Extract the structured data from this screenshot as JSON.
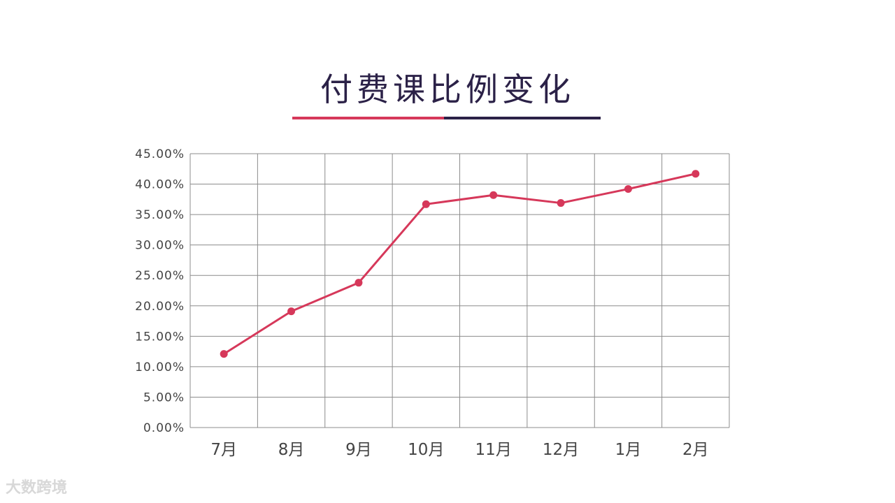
{
  "colors": {
    "line": "#d6385a",
    "title": "#2b2147",
    "grid": "#8c8c8c",
    "accent_left": "#d6385a",
    "accent_right": "#2b2147"
  },
  "chart_data": {
    "type": "line",
    "title": "付费课比例变化",
    "categories": [
      "7月",
      "8月",
      "9月",
      "10月",
      "11月",
      "12月",
      "1月",
      "2月"
    ],
    "series": [
      {
        "values": [
          12.1,
          19.1,
          23.8,
          36.7,
          38.2,
          36.9,
          39.2,
          41.7
        ]
      }
    ],
    "ylim": [
      0,
      45
    ],
    "yticks": [
      0,
      5,
      10,
      15,
      20,
      25,
      30,
      35,
      40,
      45
    ],
    "ytick_labels": [
      "0.00%",
      "5.00%",
      "10.00%",
      "15.00%",
      "20.00%",
      "25.00%",
      "30.00%",
      "35.00%",
      "40.00%",
      "45.00%"
    ],
    "grid": true,
    "markers": true
  },
  "watermark": "大数跨境"
}
